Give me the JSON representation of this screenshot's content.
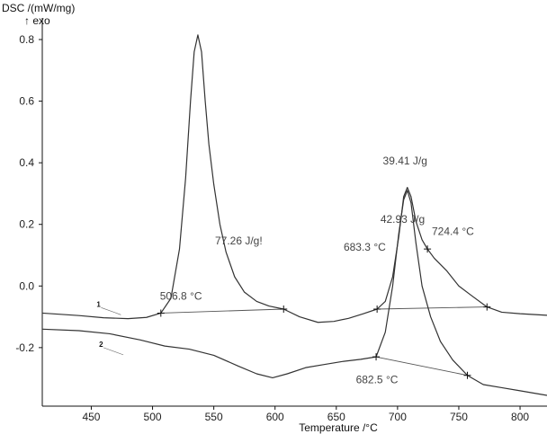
{
  "chart_data": {
    "type": "line",
    "title": "",
    "ylabel": "DSC /(mW/mg)",
    "ylabel_sub": "↑ exo",
    "xlabel": "Temperature /°C",
    "xlim": [
      410,
      822
    ],
    "ylim": [
      -0.39,
      0.87
    ],
    "x_ticks": [
      450,
      500,
      550,
      600,
      650,
      700,
      750,
      800
    ],
    "y_ticks": [
      0.8,
      0.6,
      0.4,
      0.2,
      0.0,
      -0.2
    ],
    "y_tick_labels": [
      "0.8",
      "0.6",
      "0.4",
      "0.2",
      "0.0",
      "-0.2"
    ],
    "grid": false,
    "line_color": "#333333",
    "series": [
      {
        "name": "1",
        "x": [
          410,
          440,
          460,
          480,
          495,
          506.8,
          515,
          522,
          527,
          531,
          534,
          537,
          540,
          543,
          546,
          550,
          555,
          560,
          567,
          575,
          585,
          595,
          607,
          620,
          635,
          648,
          660,
          672,
          683.3,
          690,
          696,
          701,
          705,
          708,
          711,
          715,
          720,
          724.4,
          730,
          740,
          750,
          760,
          773,
          785,
          800,
          822
        ],
        "y": [
          -0.088,
          -0.096,
          -0.103,
          -0.106,
          -0.102,
          -0.088,
          -0.04,
          0.12,
          0.35,
          0.6,
          0.76,
          0.815,
          0.76,
          0.6,
          0.46,
          0.33,
          0.2,
          0.11,
          0.03,
          -0.02,
          -0.05,
          -0.065,
          -0.075,
          -0.1,
          -0.118,
          -0.115,
          -0.105,
          -0.09,
          -0.075,
          -0.05,
          0.03,
          0.16,
          0.29,
          0.32,
          0.29,
          0.21,
          0.15,
          0.12,
          0.09,
          0.05,
          0.0,
          -0.03,
          -0.068,
          -0.085,
          -0.09,
          -0.095
        ]
      },
      {
        "name": "2",
        "x": [
          410,
          440,
          465,
          490,
          510,
          530,
          550,
          570,
          585,
          598,
          610,
          625,
          640,
          655,
          670,
          682.5,
          690,
          696,
          701,
          705,
          708,
          711,
          715,
          720,
          727,
          735,
          745,
          757,
          770,
          785,
          800,
          822
        ],
        "y": [
          -0.14,
          -0.145,
          -0.155,
          -0.175,
          -0.195,
          -0.205,
          -0.225,
          -0.26,
          -0.285,
          -0.298,
          -0.285,
          -0.265,
          -0.255,
          -0.245,
          -0.238,
          -0.23,
          -0.15,
          0.0,
          0.17,
          0.28,
          0.31,
          0.27,
          0.14,
          0.0,
          -0.1,
          -0.18,
          -0.24,
          -0.29,
          -0.32,
          -0.33,
          -0.34,
          -0.355
        ]
      }
    ],
    "baselines": [
      {
        "x": [
          506.8,
          607
        ],
        "y": [
          -0.088,
          -0.075
        ]
      },
      {
        "x": [
          683.3,
          773
        ],
        "y": [
          -0.075,
          -0.068
        ]
      },
      {
        "x": [
          682.5,
          757
        ],
        "y": [
          -0.23,
          -0.29
        ]
      }
    ],
    "markers": [
      {
        "x": 506.8,
        "y": -0.088
      },
      {
        "x": 607,
        "y": -0.075
      },
      {
        "x": 683.3,
        "y": -0.075
      },
      {
        "x": 773,
        "y": -0.068
      },
      {
        "x": 724.4,
        "y": 0.12
      },
      {
        "x": 682.5,
        "y": -0.23
      },
      {
        "x": 757,
        "y": -0.29
      }
    ],
    "annotations": [
      {
        "text": "506.8 °C",
        "x": 506,
        "y": -0.045
      },
      {
        "text": "77.26 J/g!",
        "x": 551,
        "y": 0.135
      },
      {
        "text": "39.41 J/g",
        "x": 688,
        "y": 0.395
      },
      {
        "text": "42.93 J/g",
        "x": 686,
        "y": 0.205
      },
      {
        "text": "724.4 °C",
        "x": 728,
        "y": 0.165
      },
      {
        "text": "683.3 °C",
        "x": 656,
        "y": 0.115
      },
      {
        "text": "682.5 °C",
        "x": 666,
        "y": -0.315
      }
    ],
    "curve_labels": [
      {
        "text": "1",
        "x": 458,
        "y": -0.07
      },
      {
        "text": "2",
        "x": 460,
        "y": -0.2
      }
    ]
  }
}
